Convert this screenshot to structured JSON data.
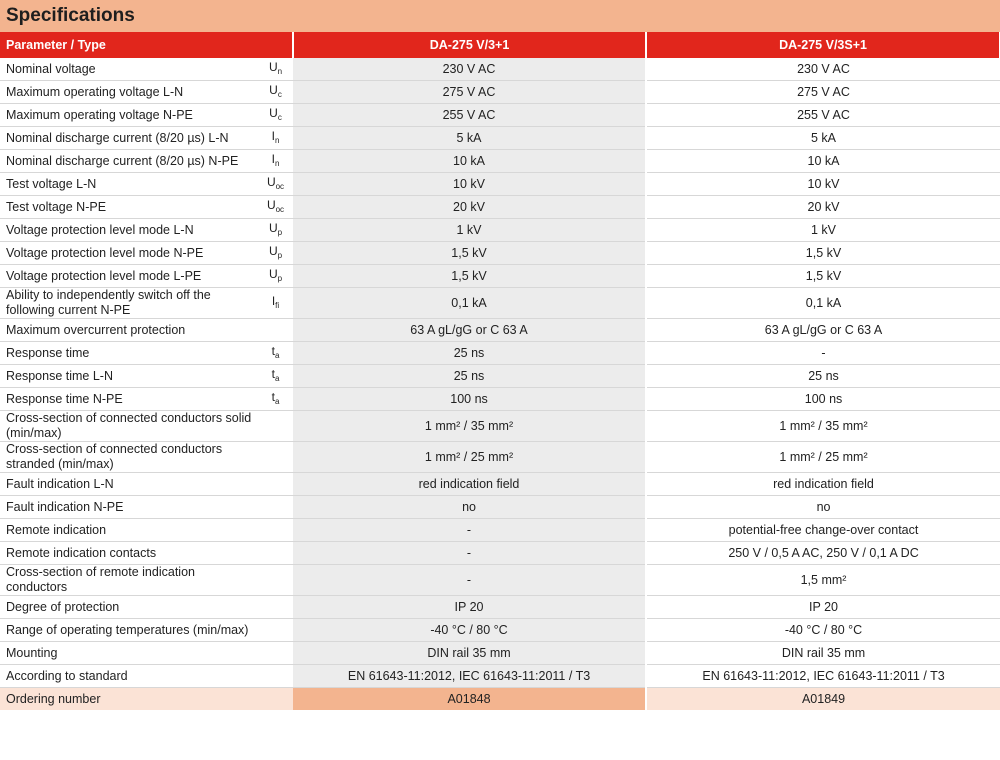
{
  "title": "Specifications",
  "header": {
    "parameter": "Parameter / Type",
    "col1": "DA-275 V/3+1",
    "col2": "DA-275 V/3S+1"
  },
  "rows": [
    {
      "param": "Nominal voltage",
      "sym": "U",
      "sub": "n",
      "v1": "230 V AC",
      "v2": "230 V AC"
    },
    {
      "param": "Maximum operating voltage L-N",
      "sym": "U",
      "sub": "c",
      "v1": "275 V AC",
      "v2": "275 V AC"
    },
    {
      "param": "Maximum operating voltage N-PE",
      "sym": "U",
      "sub": "c",
      "v1": "255 V AC",
      "v2": "255 V AC"
    },
    {
      "param": "Nominal discharge current (8/20 µs) L-N",
      "sym": "I",
      "sub": "n",
      "v1": "5 kA",
      "v2": "5 kA"
    },
    {
      "param": "Nominal discharge current (8/20 µs) N-PE",
      "sym": "I",
      "sub": "n",
      "v1": "10 kA",
      "v2": "10 kA"
    },
    {
      "param": "Test voltage L-N",
      "sym": "U",
      "sub": "oc",
      "v1": "10 kV",
      "v2": "10 kV"
    },
    {
      "param": "Test voltage N-PE",
      "sym": "U",
      "sub": "oc",
      "v1": "20 kV",
      "v2": "20 kV"
    },
    {
      "param": "Voltage protection level mode L-N",
      "sym": "U",
      "sub": "p",
      "v1": "1 kV",
      "v2": "1 kV"
    },
    {
      "param": "Voltage protection level mode N-PE",
      "sym": "U",
      "sub": "p",
      "v1": "1,5 kV",
      "v2": "1,5 kV"
    },
    {
      "param": "Voltage protection level mode L-PE",
      "sym": "U",
      "sub": "p",
      "v1": "1,5 kV",
      "v2": "1,5 kV"
    },
    {
      "param": "Ability to independently switch off the following current N-PE",
      "sym": "I",
      "sub": "fi",
      "v1": "0,1 kA",
      "v2": "0,1 kA"
    },
    {
      "param": "Maximum overcurrent protection",
      "sym": "",
      "sub": "",
      "v1": "63 A gL/gG or C 63 A",
      "v2": "63 A gL/gG or C 63 A"
    },
    {
      "param": "Response time",
      "sym": "t",
      "sub": "a",
      "v1": "25 ns",
      "v2": "-"
    },
    {
      "param": "Response time L-N",
      "sym": "t",
      "sub": "a",
      "v1": "25 ns",
      "v2": "25 ns"
    },
    {
      "param": "Response time N-PE",
      "sym": "t",
      "sub": "a",
      "v1": "100 ns",
      "v2": "100 ns"
    },
    {
      "param": "Cross-section of connected conductors solid (min/max)",
      "sym": "",
      "sub": "",
      "v1": "1 mm² / 35 mm²",
      "v2": "1 mm² / 35 mm²"
    },
    {
      "param": "Cross-section of connected conductors stranded (min/max)",
      "sym": "",
      "sub": "",
      "v1": "1 mm² / 25 mm²",
      "v2": "1 mm² / 25 mm²"
    },
    {
      "param": "Fault indication L-N",
      "sym": "",
      "sub": "",
      "v1": "red indication field",
      "v2": "red indication field"
    },
    {
      "param": "Fault indication N-PE",
      "sym": "",
      "sub": "",
      "v1": "no",
      "v2": "no"
    },
    {
      "param": "Remote indication",
      "sym": "",
      "sub": "",
      "v1": "-",
      "v2": "potential-free change-over contact"
    },
    {
      "param": "Remote indication contacts",
      "sym": "",
      "sub": "",
      "v1": "-",
      "v2": "250 V / 0,5 A AC, 250 V / 0,1 A DC"
    },
    {
      "param": "Cross-section of remote indication conductors",
      "sym": "",
      "sub": "",
      "v1": "-",
      "v2": "1,5 mm²"
    },
    {
      "param": "Degree of protection",
      "sym": "",
      "sub": "",
      "v1": "IP 20",
      "v2": "IP 20"
    },
    {
      "param": "Range of operating temperatures (min/max)",
      "sym": "",
      "sub": "",
      "v1": "-40 °C / 80 °C",
      "v2": "-40 °C / 80 °C"
    },
    {
      "param": "Mounting",
      "sym": "",
      "sub": "",
      "v1": "DIN rail 35 mm",
      "v2": "DIN rail 35 mm"
    },
    {
      "param": "According to standard",
      "sym": "",
      "sub": "",
      "v1": "EN 61643-11:2012, IEC 61643-11:2011 / T3",
      "v2": "EN 61643-11:2012, IEC 61643-11:2011 / T3"
    }
  ],
  "ordering": {
    "param": "Ordering number",
    "v1": "A01848",
    "v2": "A01849"
  }
}
